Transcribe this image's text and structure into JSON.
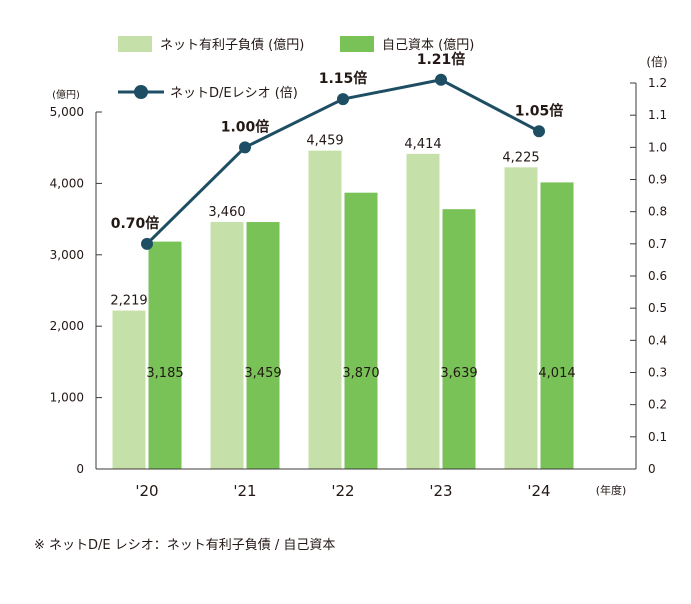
{
  "colors": {
    "debt": "#c5e0a8",
    "equity": "#79c257",
    "line": "#1d4e63",
    "axis": "#3e3a39",
    "text": "#231815"
  },
  "legend": {
    "debt_label": "ネット有利子負債 (億円)",
    "equity_label": "自己資本 (億円)",
    "ratio_label": "ネットD/Eレシオ (倍)"
  },
  "footnote": "※ ネットD/E レシオ：ネット有利子負債 / 自己資本",
  "chart_data": {
    "type": "bar",
    "categories": [
      "'20",
      "'21",
      "'22",
      "'23",
      "'24"
    ],
    "xunit": "(年度)",
    "series": [
      {
        "name": "ネット有利子負債 (億円)",
        "type": "bar",
        "axis": "left",
        "values": [
          2219,
          3460,
          4459,
          4414,
          4225
        ],
        "labels": [
          "2,219",
          "3,460",
          "4,459",
          "4,414",
          "4,225"
        ]
      },
      {
        "name": "自己資本 (億円)",
        "type": "bar",
        "axis": "left",
        "values": [
          3185,
          3459,
          3870,
          3639,
          4014
        ],
        "labels": [
          "3,185",
          "3,459",
          "3,870",
          "3,639",
          "4,014"
        ]
      },
      {
        "name": "ネットD/Eレシオ (倍)",
        "type": "line",
        "axis": "right",
        "values": [
          0.7,
          1.0,
          1.15,
          1.21,
          1.05
        ],
        "labels": [
          "0.70倍",
          "1.00倍",
          "1.15倍",
          "1.21倍",
          "1.05倍"
        ]
      }
    ],
    "left_axis": {
      "unit": "(億円)",
      "min": 0,
      "max": 5000,
      "ticks": [
        0,
        1000,
        2000,
        3000,
        4000,
        5000
      ],
      "tick_labels": [
        "0",
        "1,000",
        "2,000",
        "3,000",
        "4,000",
        "5,000"
      ]
    },
    "right_axis": {
      "unit": "(倍)",
      "min": 0,
      "max": 1.2,
      "ticks": [
        0,
        0.1,
        0.2,
        0.3,
        0.4,
        0.5,
        0.6,
        0.7,
        0.8,
        0.9,
        1.0,
        1.1,
        1.2
      ],
      "tick_labels": [
        "0",
        "0.1",
        "0.2",
        "0.3",
        "0.4",
        "0.5",
        "0.6",
        "0.7",
        "0.8",
        "0.9",
        "1.0",
        "1.1",
        "1.2"
      ]
    },
    "grid": false,
    "legend_position": "top"
  }
}
